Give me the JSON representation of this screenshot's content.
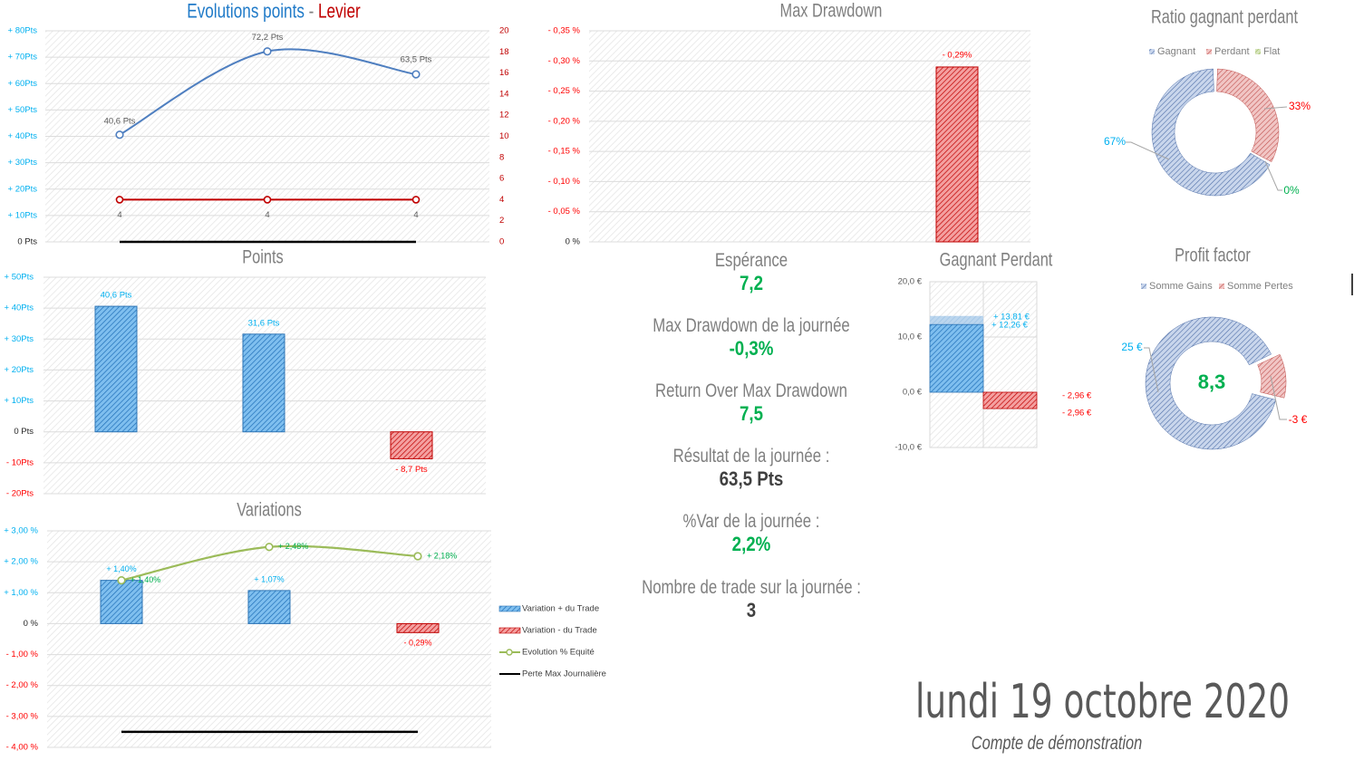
{
  "chart_data": [
    {
      "type": "line",
      "title_parts": [
        "Evolutions points",
        "-",
        "Levier"
      ],
      "ylim": [
        0,
        80
      ],
      "y2lim": [
        0,
        20
      ],
      "y_ticks": [
        "0 Pts",
        "+ 10Pts",
        "+ 20Pts",
        "+ 30Pts",
        "+ 40Pts",
        "+ 50Pts",
        "+ 60Pts",
        "+ 70Pts",
        "+ 80Pts"
      ],
      "y2_ticks": [
        "0",
        "2",
        "4",
        "6",
        "8",
        "10",
        "12",
        "14",
        "16",
        "18",
        "20"
      ],
      "grid": true,
      "series": [
        {
          "values": [
            40.6,
            72.2,
            63.5
          ],
          "labels": [
            "40,6 Pts",
            "72,2 Pts",
            "63,5 Pts"
          ],
          "axis": "left",
          "color": "#4f7fc0"
        },
        {
          "values": [
            4,
            4,
            4
          ],
          "labels": [
            "4",
            "4",
            "4"
          ],
          "axis": "right",
          "color": "#c00000"
        },
        {
          "values": [
            0,
            0,
            0
          ],
          "axis": "left",
          "color": "#000000"
        }
      ]
    },
    {
      "type": "bar",
      "title": "Points",
      "ylim": [
        -20,
        50
      ],
      "y_ticks": [
        "- 20Pts",
        "- 10Pts",
        "0 Pts",
        "+ 10Pts",
        "+ 20Pts",
        "+ 30Pts",
        "+ 40Pts",
        "+ 50Pts"
      ],
      "grid": true,
      "values": [
        40.6,
        31.6,
        -8.7
      ],
      "labels": [
        "40,6 Pts",
        "31,6 Pts",
        "- 8,7 Pts"
      ]
    },
    {
      "type": "bar",
      "title": "Variations",
      "ylim": [
        -4,
        3
      ],
      "y_ticks": [
        "- 4,00 %",
        "- 3,00 %",
        "- 2,00 %",
        "- 1,00 %",
        "0 %",
        "+ 1,00 %",
        "+ 2,00 %",
        "+ 3,00 %"
      ],
      "grid": true,
      "legend_position": "right",
      "series": [
        {
          "name": "Variation + du Trade",
          "type": "bar",
          "values": [
            1.4,
            1.07,
            null
          ],
          "labels": [
            "+ 1,40%",
            "+ 1,07%",
            ""
          ]
        },
        {
          "name": "Variation - du Trade",
          "type": "bar",
          "values": [
            null,
            null,
            -0.29
          ],
          "labels": [
            "",
            "",
            "- 0,29%"
          ]
        },
        {
          "name": "Evolution % Equité",
          "type": "line",
          "values": [
            1.4,
            2.48,
            2.18
          ],
          "labels": [
            "+ 1,40%",
            "+ 2,48%",
            "+ 2,18%"
          ]
        },
        {
          "name": "Perte Max Journalière",
          "type": "line",
          "values": [
            -3.5,
            -3.5,
            -3.5
          ]
        }
      ]
    },
    {
      "type": "bar",
      "title": "Max Drawdown",
      "ylim": [
        0,
        0.35
      ],
      "y_ticks": [
        "0 %",
        "- 0,05 %",
        "- 0,10 %",
        "- 0,15 %",
        "- 0,20 %",
        "- 0,25 %",
        "- 0,30 %",
        "- 0,35 %"
      ],
      "grid": true,
      "values": [
        0.29
      ],
      "labels": [
        "- 0,29%"
      ]
    },
    {
      "type": "bar",
      "title": "Gagnant Perdant",
      "ylim": [
        -10,
        20
      ],
      "y_ticks": [
        "-10,0 €",
        "0,0 €",
        "10,0 €",
        "20,0 €"
      ],
      "series": [
        {
          "values": [
            13.81,
            -2.96
          ],
          "labels": [
            "+ 13,81 €",
            "- 2,96 €"
          ]
        },
        {
          "values": [
            12.26,
            -2.96
          ],
          "labels": [
            "+ 12,26 €",
            "- 2,96 €"
          ]
        }
      ]
    },
    {
      "type": "pie",
      "title": "Ratio gagnant perdant",
      "legend": [
        "Gagnant",
        "Perdant",
        "Flat"
      ],
      "legend_position": "top",
      "values": [
        67,
        33,
        0
      ],
      "labels": [
        "67%",
        "33%",
        "0%"
      ],
      "colors": [
        "#4f7fc0",
        "#c0504d",
        "#9bbb59"
      ]
    },
    {
      "type": "pie",
      "title": "Profit factor",
      "legend": [
        "Somme Gains",
        "Somme Pertes"
      ],
      "legend_position": "top",
      "values": [
        25,
        3
      ],
      "labels": [
        "25 €",
        "-3 €"
      ],
      "center_label": "8,3",
      "colors": [
        "#4f7fc0",
        "#c0504d"
      ]
    }
  ],
  "stats": [
    {
      "label": "Espérance",
      "value": "7,2"
    },
    {
      "label": "Max Drawdown de la journée",
      "value": "-0,3%"
    },
    {
      "label": "Return Over Max Drawdown",
      "value": "7,5"
    },
    {
      "label": "Résultat de la journée :",
      "value": "63,5 Pts"
    },
    {
      "label": "%Var de la journée :",
      "value": "2,2%"
    },
    {
      "label": "Nombre de trade sur la journée :",
      "value": "3"
    }
  ],
  "date": "lundi 19 octobre 2020",
  "account": "Compte de démonstration",
  "colors": {
    "positive": "#00b0f0",
    "negative": "#ff0000",
    "good": "#00b050",
    "title": "#7f7f7f"
  }
}
